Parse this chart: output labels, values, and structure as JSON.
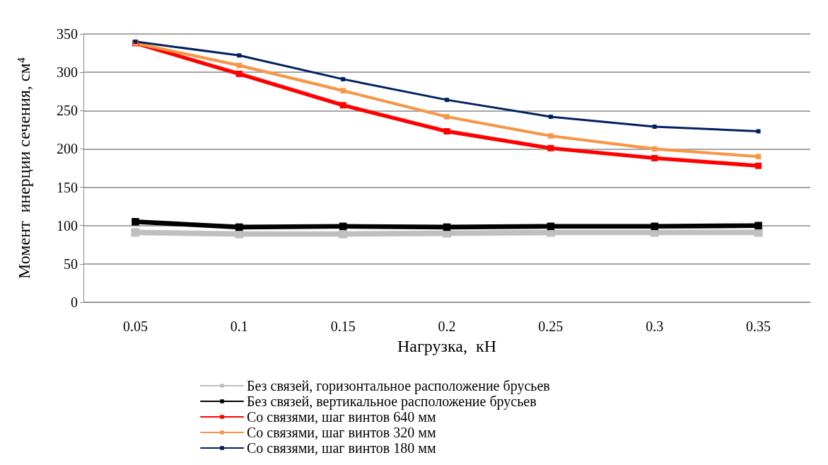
{
  "chart_data": {
    "type": "line",
    "xlabel": "Нагрузка,  кН",
    "ylabel": "Момент  инерции сечения, см⁴",
    "categories": [
      "0.05",
      "0.1",
      "0.15",
      "0.2",
      "0.25",
      "0.3",
      "0.35"
    ],
    "series": [
      {
        "name": "Без связей, горизонтальное расположение брусьев",
        "color": "#bfbfbf",
        "values": [
          91,
          89,
          89,
          90,
          91,
          91,
          91
        ]
      },
      {
        "name": "Без связей, вертикальное расположение брусьев",
        "color": "#000000",
        "values": [
          105,
          98,
          99,
          98,
          99,
          99,
          100
        ]
      },
      {
        "name": "Со связями, шаг винтов 640 мм",
        "color": "#ff0000",
        "values": [
          338,
          298,
          257,
          223,
          201,
          188,
          178
        ]
      },
      {
        "name": "Со связями, шаг винтов 320 мм",
        "color": "#f79646",
        "values": [
          338,
          309,
          276,
          242,
          217,
          200,
          190
        ]
      },
      {
        "name": "Со связями, шаг винтов 180 мм",
        "color": "#002060",
        "values": [
          340,
          322,
          291,
          264,
          242,
          229,
          223
        ]
      }
    ],
    "ylim": [
      0,
      350
    ],
    "yticks": [
      0,
      50,
      100,
      150,
      200,
      250,
      300,
      350
    ],
    "grid": "y",
    "legend": "bottom",
    "marker": "square",
    "line_style": "solid"
  }
}
